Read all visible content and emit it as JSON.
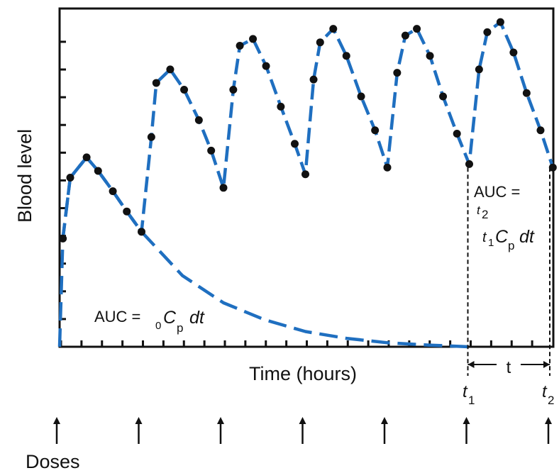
{
  "chart_data": {
    "type": "line",
    "xlabel": "Time (hours)",
    "ylabel": "Blood level",
    "grid": false,
    "colors": {
      "curve": "#1f6fc0",
      "points": "#111111",
      "axis": "#111111"
    },
    "xlim": [
      0,
      6.1
    ],
    "ylim": [
      0,
      1.0
    ],
    "dose_times": [
      0,
      1,
      2,
      3,
      4,
      5,
      6
    ],
    "doses_label": "Doses",
    "t1": 5,
    "t2": 6,
    "t1_label": "t",
    "t1_sub": "1",
    "t2_label": "t",
    "t2_sub": "2",
    "interval_label": "t",
    "series": [
      {
        "style": "dashed-with-markers",
        "points": [
          [
            0.04,
            0.32
          ],
          [
            0.13,
            0.5
          ],
          [
            0.33,
            0.56
          ],
          [
            0.47,
            0.52
          ],
          [
            0.65,
            0.46
          ],
          [
            0.82,
            0.4
          ],
          [
            1.0,
            0.34
          ],
          [
            1.12,
            0.62
          ],
          [
            1.18,
            0.78
          ],
          [
            1.35,
            0.82
          ],
          [
            1.52,
            0.76
          ],
          [
            1.7,
            0.67
          ],
          [
            1.85,
            0.58
          ],
          [
            2.0,
            0.47
          ],
          [
            2.12,
            0.76
          ],
          [
            2.2,
            0.89
          ],
          [
            2.36,
            0.91
          ],
          [
            2.52,
            0.83
          ],
          [
            2.7,
            0.71
          ],
          [
            2.87,
            0.6
          ],
          [
            3.0,
            0.51
          ],
          [
            3.1,
            0.79
          ],
          [
            3.18,
            0.9
          ],
          [
            3.34,
            0.94
          ],
          [
            3.5,
            0.86
          ],
          [
            3.68,
            0.74
          ],
          [
            3.85,
            0.64
          ],
          [
            4.0,
            0.53
          ],
          [
            4.12,
            0.81
          ],
          [
            4.22,
            0.92
          ],
          [
            4.36,
            0.94
          ],
          [
            4.52,
            0.86
          ],
          [
            4.68,
            0.74
          ],
          [
            4.85,
            0.63
          ],
          [
            5.0,
            0.54
          ],
          [
            5.12,
            0.82
          ],
          [
            5.22,
            0.93
          ],
          [
            5.38,
            0.96
          ],
          [
            5.54,
            0.87
          ],
          [
            5.7,
            0.75
          ],
          [
            5.87,
            0.64
          ],
          [
            6.02,
            0.53
          ]
        ]
      },
      {
        "style": "dashed",
        "points": [
          [
            0.0,
            0.0
          ],
          [
            0.04,
            0.32
          ],
          [
            0.13,
            0.5
          ],
          [
            0.33,
            0.56
          ],
          [
            0.47,
            0.52
          ],
          [
            0.65,
            0.46
          ],
          [
            0.82,
            0.4
          ],
          [
            1.0,
            0.34
          ],
          [
            1.5,
            0.21
          ],
          [
            2.0,
            0.13
          ],
          [
            2.5,
            0.08
          ],
          [
            3.0,
            0.045
          ],
          [
            3.5,
            0.025
          ],
          [
            4.0,
            0.012
          ],
          [
            4.5,
            0.005
          ],
          [
            5.0,
            0.0
          ]
        ]
      }
    ],
    "annotations": {
      "auc_total": {
        "pre": "AUC =",
        "lower": "0",
        "var": "C",
        "sub": "p",
        "post": "dt"
      },
      "auc_interval": {
        "line1": "AUC =",
        "upper": "t",
        "upper_sub": "2",
        "lower": "t",
        "lower_sub": "1",
        "var": "C",
        "sub": "p",
        "post": "dt"
      }
    }
  }
}
